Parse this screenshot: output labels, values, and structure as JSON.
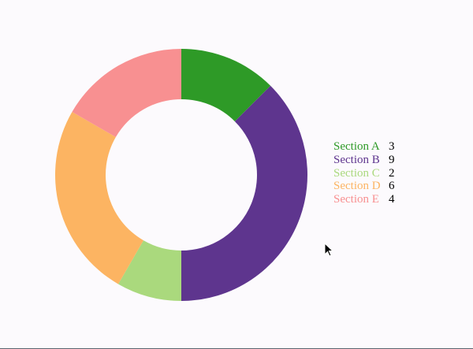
{
  "chart_data": {
    "type": "pie",
    "variant": "donut",
    "categories": [
      "Section A",
      "Section B",
      "Section C",
      "Section D",
      "Section E"
    ],
    "values": [
      3,
      9,
      2,
      6,
      4
    ],
    "colors": [
      "#2e9a27",
      "#5e358e",
      "#aad97d",
      "#fcb462",
      "#f89091"
    ],
    "legend_placement": "right"
  },
  "cursor": {
    "icon": "arrow-cursor-icon"
  }
}
